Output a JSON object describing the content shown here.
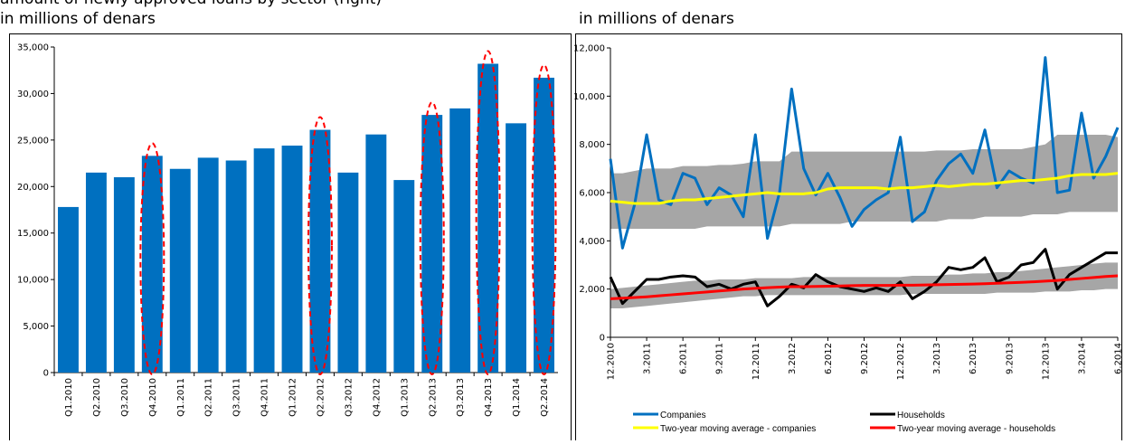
{
  "header_text": "amount of newly approved loans by sector (right)",
  "chart_data": [
    {
      "type": "bar",
      "ylabel": "in millions of denars",
      "categories": [
        "Q1.2010",
        "Q2.2010",
        "Q3.2010",
        "Q4.2010",
        "Q1.2011",
        "Q2.2011",
        "Q3.2011",
        "Q4.2011",
        "Q1.2012",
        "Q2.2012",
        "Q3.2012",
        "Q4.2012",
        "Q1.2013",
        "Q2.2013",
        "Q3.2013",
        "Q4.2013",
        "Q1.2014",
        "Q2.2014"
      ],
      "values": [
        17800,
        21500,
        21000,
        23300,
        21900,
        23100,
        22800,
        24100,
        24400,
        26100,
        21500,
        25600,
        20700,
        27700,
        28400,
        33200,
        26800,
        31700
      ],
      "color": "#0070c0",
      "highlight": [
        3,
        9,
        13,
        15,
        17
      ],
      "highlight_color": "#ff0000",
      "ylim": [
        0,
        35000
      ],
      "yticks": [
        0,
        {
          "value": 5000,
          "label": "5,000"
        },
        {
          "value": 10000,
          "label": "10,000"
        },
        {
          "value": 15000,
          "label": "15,000"
        },
        {
          "value": 20000,
          "label": "20,000"
        },
        {
          "value": 25000,
          "label": "25,000"
        },
        {
          "value": 30000,
          "label": "30,000"
        },
        {
          "value": 35000,
          "label": "35,000"
        }
      ],
      "grid": false
    },
    {
      "type": "line",
      "ylabel": "in millions of denars",
      "categories": [
        "12.2010",
        null,
        null,
        "3.2011",
        null,
        null,
        "6.2011",
        null,
        null,
        "9.2011",
        null,
        null,
        "12.2011",
        null,
        null,
        "3.2012",
        null,
        null,
        "6.2012",
        null,
        null,
        "9.2012",
        null,
        null,
        "12.2012",
        null,
        null,
        "3.2013",
        null,
        null,
        "6.2013",
        null,
        null,
        "9.2013",
        null,
        null,
        "12.2013",
        null,
        null,
        "3.2014",
        null,
        null,
        "6.2014"
      ],
      "bands": [
        {
          "color": "#a6a6a6",
          "upper": [
            6800,
            6800,
            6900,
            7000,
            7000,
            7000,
            7100,
            7100,
            7100,
            7150,
            7150,
            7200,
            7300,
            7300,
            7300,
            7700,
            7700,
            7700,
            7700,
            7700,
            7700,
            7700,
            7700,
            7700,
            7700,
            7700,
            7700,
            7750,
            7750,
            7750,
            7800,
            7800,
            7800,
            7800,
            7800,
            7900,
            8000,
            8400,
            8400,
            8400,
            8400,
            8400,
            8300
          ],
          "lower": [
            4500,
            4500,
            4500,
            4500,
            4500,
            4500,
            4500,
            4500,
            4600,
            4600,
            4600,
            4600,
            4600,
            4600,
            4600,
            4700,
            4700,
            4700,
            4700,
            4700,
            4800,
            4800,
            4800,
            4800,
            4800,
            4800,
            4800,
            4800,
            4900,
            4900,
            4900,
            5000,
            5000,
            5000,
            5000,
            5100,
            5100,
            5100,
            5200,
            5200,
            5200,
            5200,
            5200
          ]
        },
        {
          "color": "#a6a6a6",
          "upper": [
            2000,
            2050,
            2100,
            2150,
            2200,
            2250,
            2300,
            2350,
            2350,
            2400,
            2400,
            2400,
            2450,
            2450,
            2450,
            2450,
            2500,
            2500,
            2500,
            2500,
            2500,
            2500,
            2500,
            2500,
            2500,
            2550,
            2550,
            2550,
            2600,
            2600,
            2650,
            2650,
            2700,
            2700,
            2750,
            2800,
            2850,
            2900,
            2950,
            3000,
            3050,
            3100,
            3100
          ],
          "lower": [
            1200,
            1200,
            1250,
            1300,
            1350,
            1400,
            1450,
            1500,
            1550,
            1600,
            1650,
            1700,
            1700,
            1750,
            1750,
            1750,
            1750,
            1750,
            1750,
            1750,
            1750,
            1750,
            1750,
            1750,
            1750,
            1800,
            1800,
            1800,
            1800,
            1800,
            1800,
            1800,
            1850,
            1850,
            1850,
            1850,
            1900,
            1900,
            1900,
            1950,
            1950,
            2000,
            2000
          ]
        }
      ],
      "series": [
        {
          "name": "Companies",
          "color": "#0070c0",
          "values": [
            7400,
            3700,
            5500,
            8400,
            5700,
            5500,
            6800,
            6600,
            5500,
            6200,
            5900,
            5000,
            8400,
            4100,
            6000,
            10300,
            7000,
            5900,
            6800,
            5800,
            4600,
            5300,
            5700,
            6000,
            8300,
            4800,
            5200,
            6500,
            7200,
            7600,
            6800,
            8600,
            6200,
            6900,
            6600,
            6400,
            11600,
            6000,
            6100,
            9300,
            6600,
            7500,
            8700
          ]
        },
        {
          "name": "Households",
          "color": "#000000",
          "values": [
            2500,
            1400,
            1900,
            2400,
            2400,
            2500,
            2550,
            2500,
            2100,
            2200,
            2000,
            2200,
            2300,
            1300,
            1700,
            2200,
            2050,
            2600,
            2300,
            2100,
            2000,
            1900,
            2050,
            1900,
            2300,
            1600,
            1900,
            2300,
            2900,
            2800,
            2900,
            3300,
            2300,
            2500,
            3000,
            3100,
            3650,
            2000,
            2600,
            2900,
            3200,
            3500,
            3500
          ]
        },
        {
          "name": "Two-year moving average - companies",
          "color": "#ffff00",
          "values": [
            5650,
            5600,
            5550,
            5550,
            5550,
            5650,
            5700,
            5700,
            5750,
            5800,
            5850,
            5900,
            5950,
            6000,
            5950,
            5950,
            5950,
            6000,
            6150,
            6200,
            6200,
            6200,
            6200,
            6150,
            6200,
            6200,
            6250,
            6300,
            6250,
            6300,
            6350,
            6350,
            6400,
            6450,
            6500,
            6500,
            6550,
            6600,
            6700,
            6750,
            6750,
            6750,
            6800
          ]
        },
        {
          "name": "Two-year moving average - households",
          "color": "#ff0000",
          "values": [
            1600,
            1620,
            1650,
            1680,
            1720,
            1760,
            1800,
            1840,
            1880,
            1920,
            1960,
            2000,
            2030,
            2060,
            2080,
            2100,
            2100,
            2110,
            2120,
            2130,
            2140,
            2150,
            2150,
            2150,
            2160,
            2160,
            2170,
            2180,
            2190,
            2200,
            2210,
            2220,
            2240,
            2260,
            2280,
            2300,
            2330,
            2360,
            2400,
            2440,
            2480,
            2520,
            2550
          ]
        }
      ],
      "ylim": [
        0,
        12000
      ],
      "yticks": [
        0,
        {
          "value": 2000,
          "label": "2,000"
        },
        {
          "value": 4000,
          "label": "4,000"
        },
        {
          "value": 6000,
          "label": "6,000"
        },
        {
          "value": 8000,
          "label": "8,000"
        },
        {
          "value": 10000,
          "label": "10,000"
        },
        {
          "value": 12000,
          "label": "12,000"
        }
      ],
      "grid": false
    }
  ]
}
